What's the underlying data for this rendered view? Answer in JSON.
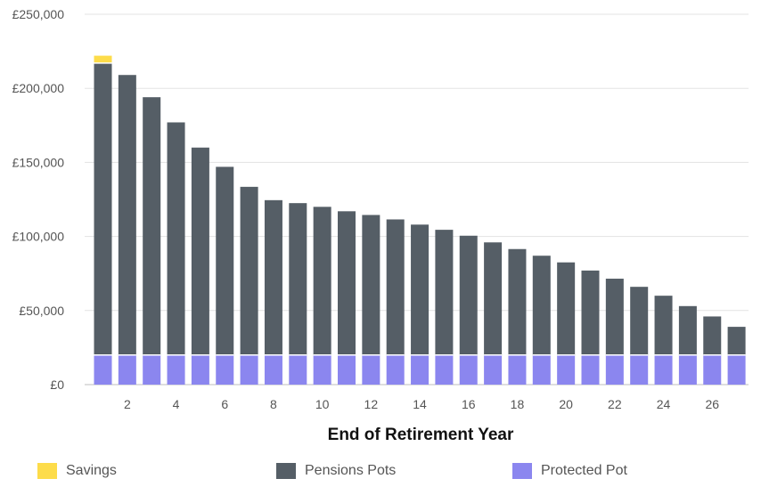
{
  "chart_data": {
    "type": "bar",
    "stacked": true,
    "xlabel": "End of Retirement Year",
    "categories": [
      1,
      2,
      3,
      4,
      5,
      6,
      7,
      8,
      9,
      10,
      11,
      12,
      13,
      14,
      15,
      16,
      17,
      18,
      19,
      20,
      21,
      22,
      23,
      24,
      25,
      26,
      27
    ],
    "x_tick_labels": [
      "2",
      "4",
      "6",
      "8",
      "10",
      "12",
      "14",
      "16",
      "18",
      "20",
      "22",
      "24",
      "26"
    ],
    "x_tick_values": [
      2,
      4,
      6,
      8,
      10,
      12,
      14,
      16,
      18,
      20,
      22,
      24,
      26
    ],
    "y_tick_labels": [
      "£0",
      "£50,000",
      "£100,000",
      "£150,000",
      "£200,000",
      "£250,000"
    ],
    "y_tick_values": [
      0,
      50000,
      100000,
      150000,
      200000,
      250000
    ],
    "ylim": [
      0,
      250000
    ],
    "grid": true,
    "legend_position": "bottom",
    "series": [
      {
        "name": "Protected Pot",
        "color": "#8b86ef",
        "values": [
          20000,
          20000,
          20000,
          20000,
          20000,
          20000,
          20000,
          20000,
          20000,
          20000,
          20000,
          20000,
          20000,
          20000,
          20000,
          20000,
          20000,
          20000,
          20000,
          20000,
          20000,
          20000,
          20000,
          20000,
          20000,
          20000,
          20000
        ]
      },
      {
        "name": "Pensions Pots",
        "color": "#555e66",
        "values": [
          197000,
          189000,
          174000,
          157000,
          140000,
          127000,
          113500,
          104500,
          102500,
          100000,
          97000,
          94500,
          91500,
          88000,
          84500,
          80500,
          76000,
          71500,
          67000,
          62500,
          57000,
          51500,
          46000,
          40000,
          33000,
          26000,
          19000
        ]
      },
      {
        "name": "Savings",
        "color": "#fddc4a",
        "values": [
          5000,
          0,
          0,
          0,
          0,
          0,
          0,
          0,
          0,
          0,
          0,
          0,
          0,
          0,
          0,
          0,
          0,
          0,
          0,
          0,
          0,
          0,
          0,
          0,
          0,
          0,
          0
        ]
      }
    ]
  },
  "legend": {
    "items": [
      {
        "label": "Savings",
        "color": "#fddc4a"
      },
      {
        "label": "Pensions Pots",
        "color": "#555e66"
      },
      {
        "label": "Protected Pot",
        "color": "#8b86ef"
      }
    ]
  }
}
